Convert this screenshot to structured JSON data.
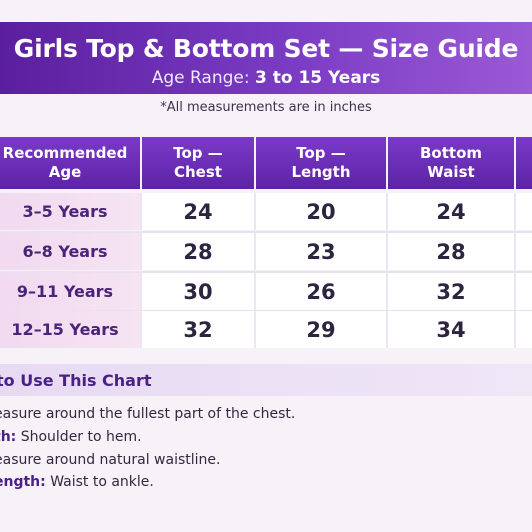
{
  "header": {
    "title": "Girls Top & Bottom Set — Size Guide",
    "age_range_label": "Age Range:",
    "age_range_value": "3 to 15 Years",
    "note": "*All measurements are in inches"
  },
  "table": {
    "headers": [
      {
        "line1": "Recommended",
        "line2": "Age"
      },
      {
        "line1": "Top —",
        "line2": "Chest"
      },
      {
        "line1": "Top —",
        "line2": "Length"
      },
      {
        "line1": "Bottom",
        "line2": "Waist"
      }
    ],
    "rows": [
      {
        "age": "3–5 Years",
        "chest": "24",
        "length": "20",
        "waist": "24"
      },
      {
        "age": "6–8 Years",
        "chest": "28",
        "length": "23",
        "waist": "28"
      },
      {
        "age": "9–11 Years",
        "chest": "30",
        "length": "26",
        "waist": "32"
      },
      {
        "age": "12–15 Years",
        "chest": "32",
        "length": "29",
        "waist": "34"
      }
    ]
  },
  "howto": {
    "title": "to Use This Chart",
    "items": [
      {
        "label": "",
        "text": "easure around the fullest part of the chest."
      },
      {
        "label": "th:",
        "text": " Shoulder to hem."
      },
      {
        "label": "",
        "text": "easure around natural waistline."
      },
      {
        "label": "ength:",
        "text": " Waist to ankle."
      }
    ]
  },
  "colors": {
    "header_purple": "#5a1f9e",
    "age_cell_pink": "#f1d9f0",
    "accent_text": "#4a1f86"
  }
}
